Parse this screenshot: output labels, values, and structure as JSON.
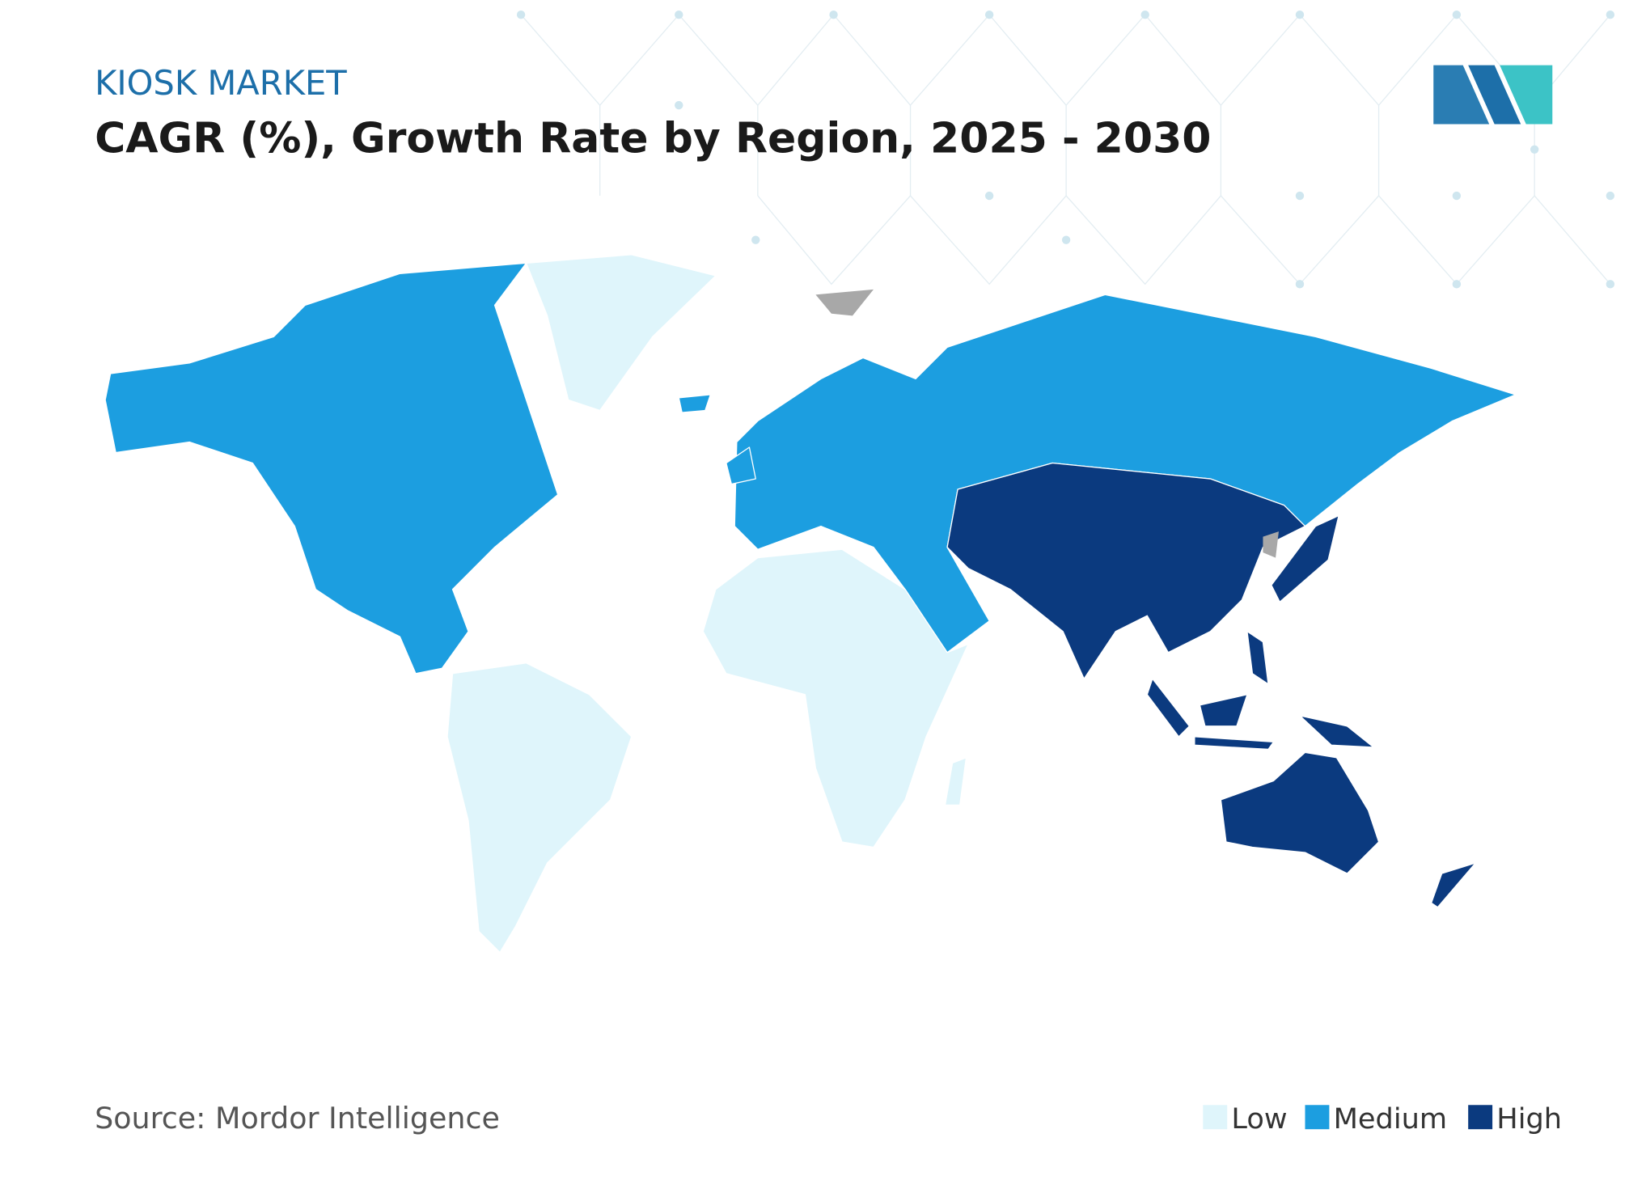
{
  "header": {
    "eyebrow": "KIOSK MARKET",
    "title": "CAGR (%), Growth Rate by Region, 2025 - 2030"
  },
  "source": "Source: Mordor Intelligence",
  "legend": [
    {
      "label": "Low",
      "color": "#dff5fb"
    },
    {
      "label": "Medium",
      "color": "#1c9ee0"
    },
    {
      "label": "High",
      "color": "#0b3a7f"
    }
  ]
}
